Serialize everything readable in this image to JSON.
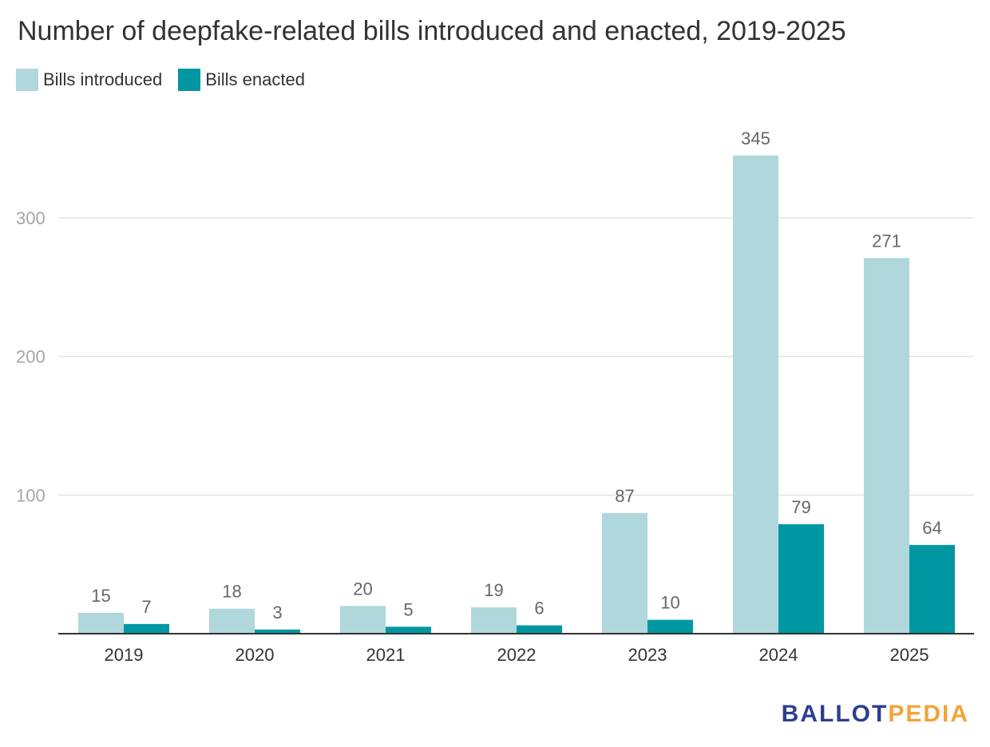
{
  "header": {
    "title": "Number of deepfake-related bills introduced and enacted, 2019-2025"
  },
  "brand": {
    "part1": "BALLOT",
    "part2": "PEDIA"
  },
  "chart_data": {
    "type": "bar",
    "title": "Number of deepfake-related bills introduced and enacted, 2019-2025",
    "xlabel": "",
    "ylabel": "",
    "categories": [
      "2019",
      "2020",
      "2021",
      "2022",
      "2023",
      "2024",
      "2025"
    ],
    "series": [
      {
        "name": "Bills introduced",
        "color": "#b0d7dc",
        "values": [
          15,
          18,
          20,
          19,
          87,
          345,
          271
        ]
      },
      {
        "name": "Bills enacted",
        "color": "#0097a3",
        "values": [
          7,
          3,
          5,
          6,
          10,
          79,
          64
        ]
      }
    ],
    "ylim": [
      0,
      350
    ],
    "yticks": [
      100,
      200,
      300
    ],
    "grid": true,
    "legend": "top-left",
    "data_labels": true
  }
}
